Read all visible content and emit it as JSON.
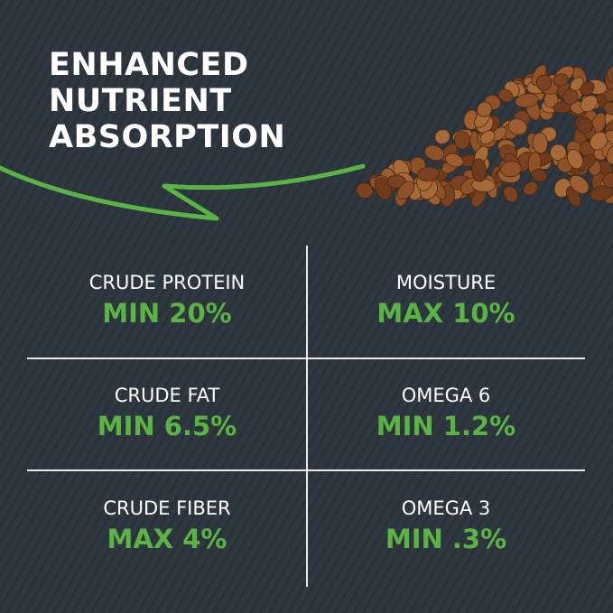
{
  "headline": [
    "ENHANCED",
    "NUTRIENT",
    "ABSORPTION"
  ],
  "colors": {
    "accent": "#5bb344",
    "background": "#2b343c",
    "kibble": "#8a4f25"
  },
  "icons": {
    "arrow": "curved-arrow-icon",
    "image": "kibble-pile"
  },
  "nutrients": [
    {
      "label": "CRUDE PROTEIN",
      "value": "MIN 20%"
    },
    {
      "label": "MOISTURE",
      "value": "MAX 10%"
    },
    {
      "label": "CRUDE FAT",
      "value": "MIN 6.5%"
    },
    {
      "label": "OMEGA 6",
      "value": "MIN 1.2%"
    },
    {
      "label": "CRUDE FIBER",
      "value": "MAX 4%"
    },
    {
      "label": "OMEGA 3",
      "value": "MIN .3%"
    }
  ]
}
